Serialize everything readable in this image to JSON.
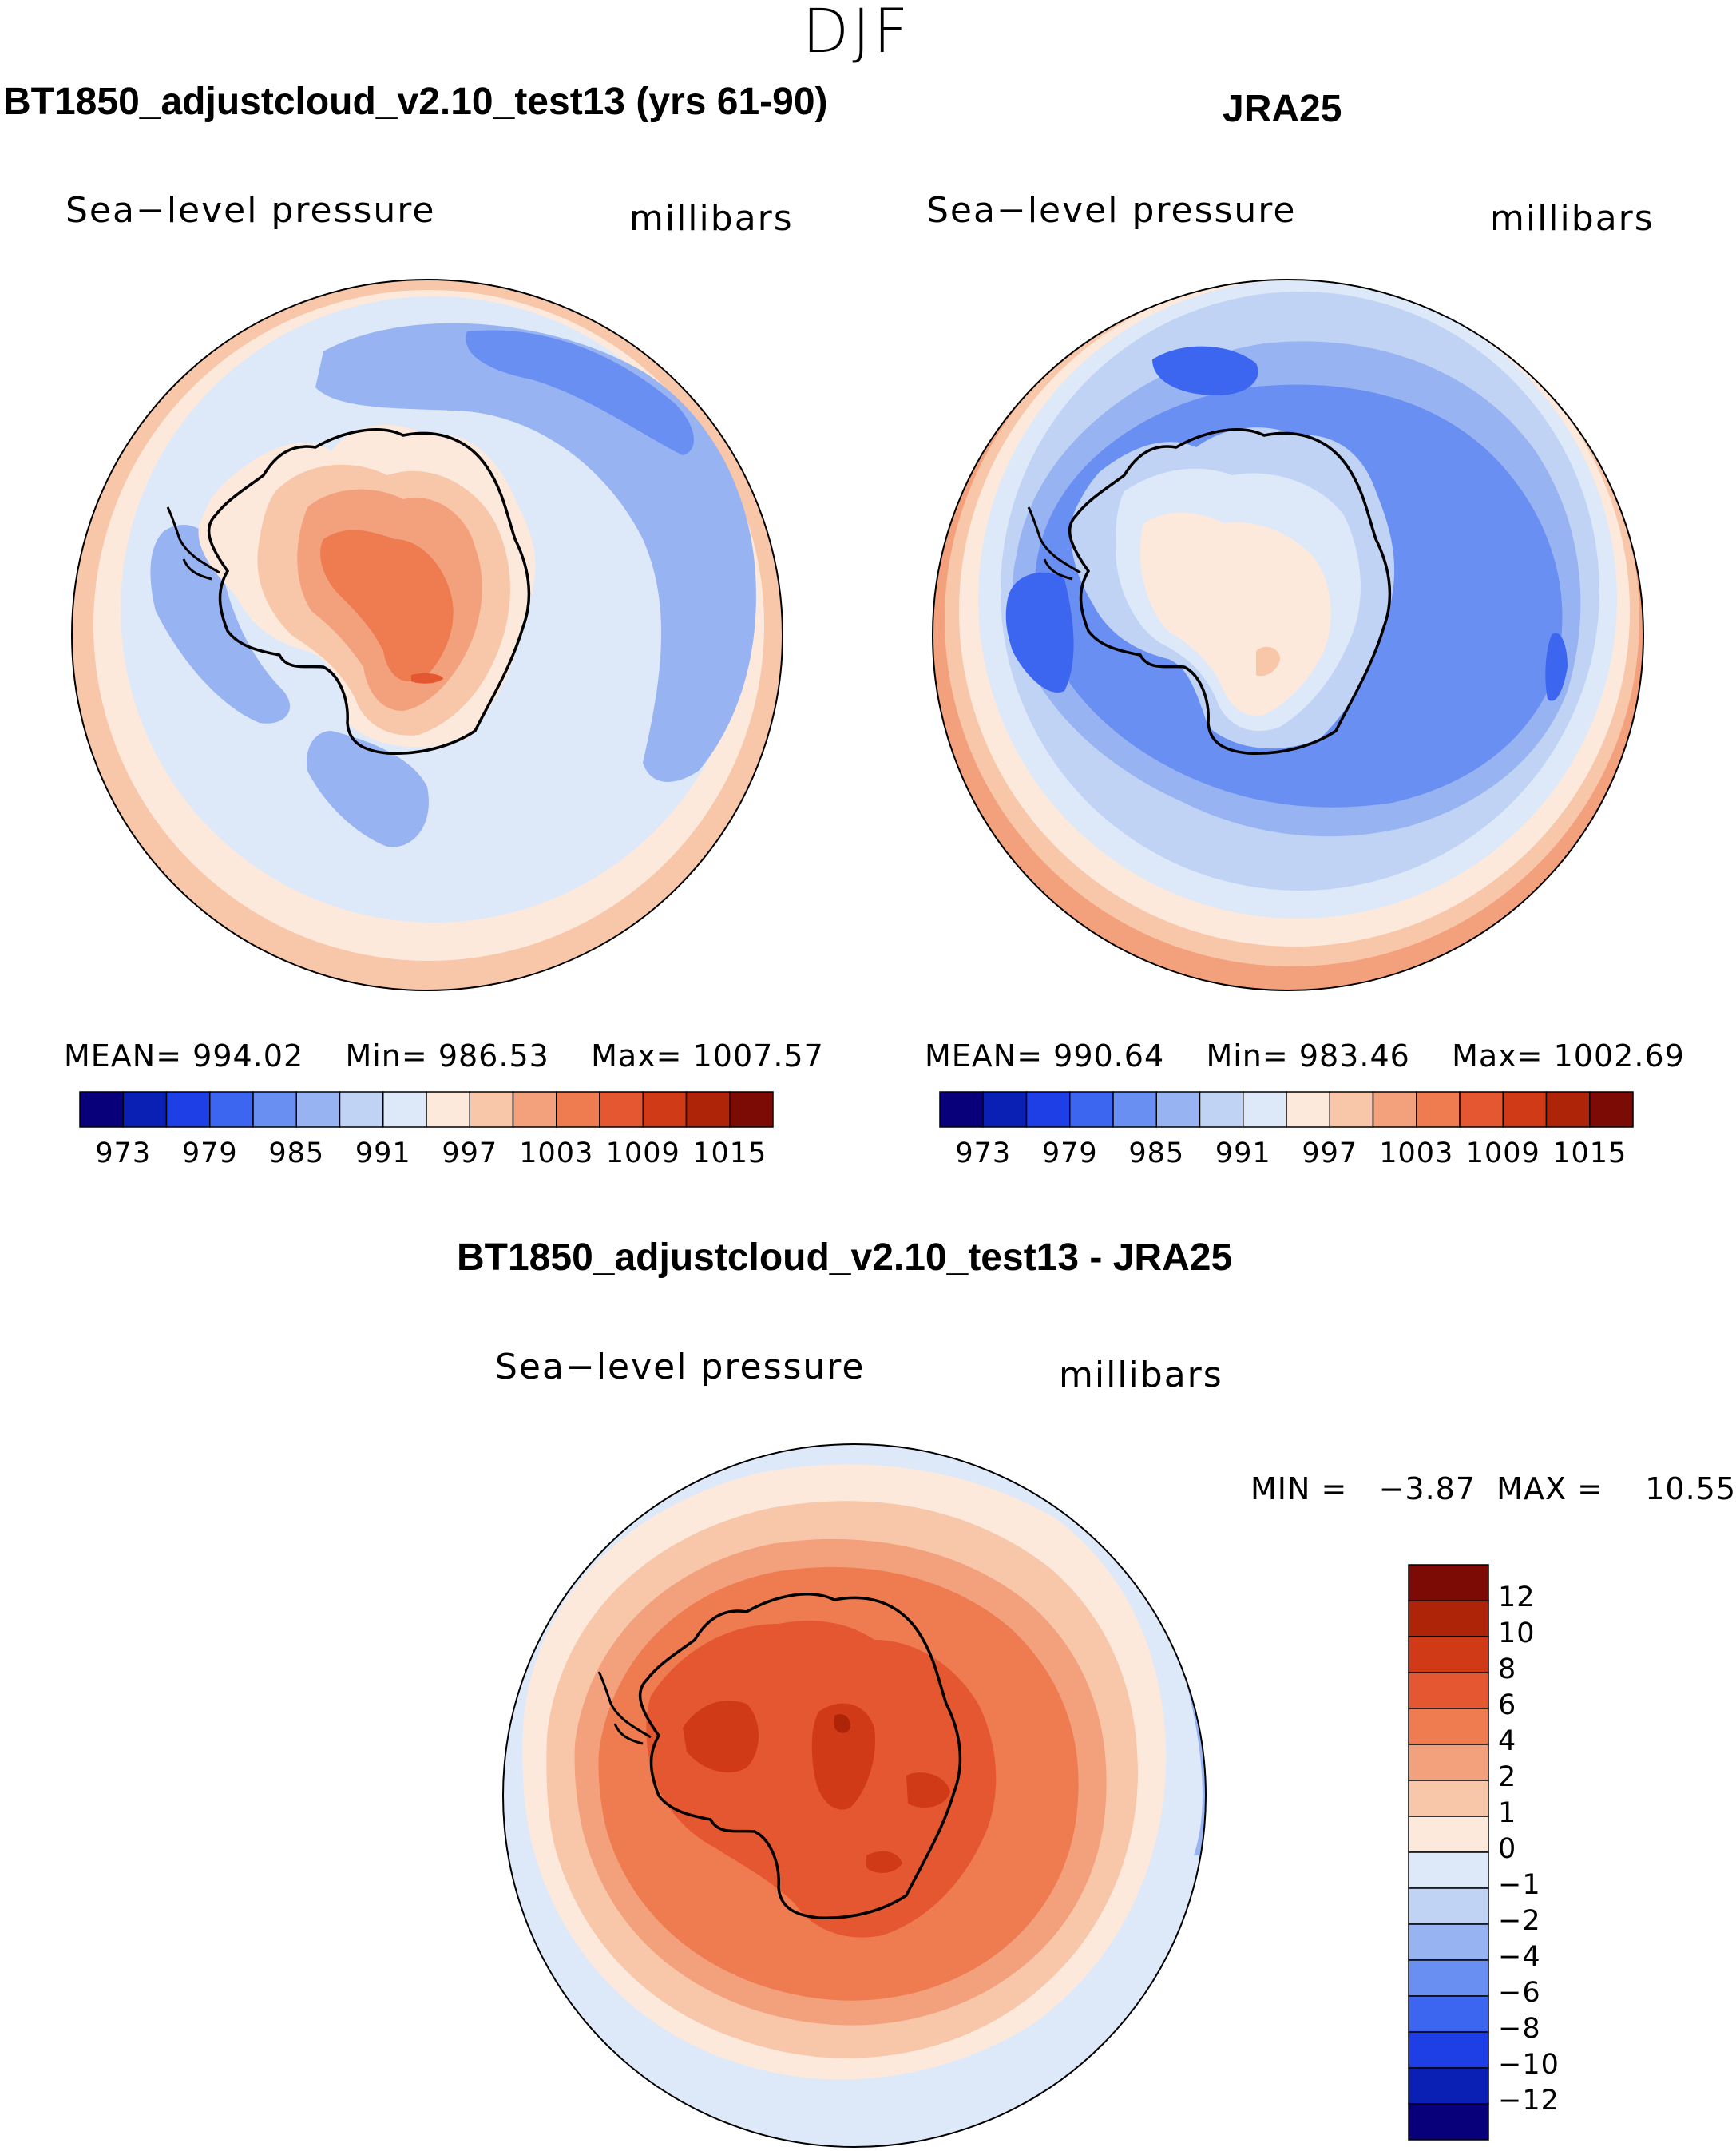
{
  "season": "DJF",
  "colors": {
    "abs_scale": [
      "#08007a",
      "#0a1fb4",
      "#1f3fe6",
      "#3d66f0",
      "#6a8ff2",
      "#98b3f2",
      "#c0d3f4",
      "#dde9f8",
      "#fce9dc",
      "#f8c6a9",
      "#f3a17c",
      "#ee7c50",
      "#e55730",
      "#d03a16",
      "#ae2409",
      "#7c0a05"
    ],
    "diff_scale": [
      "#08007a",
      "#0a1fb4",
      "#1f3fe6",
      "#3d66f0",
      "#6a8ff2",
      "#98b3f2",
      "#c0d3f4",
      "#dde9f8",
      "#fce9dc",
      "#f8c6a9",
      "#f3a17c",
      "#ee7c50",
      "#e55730",
      "#d03a16",
      "#ae2409",
      "#7c0a05"
    ]
  },
  "panels": [
    {
      "title": "BT1850_adjustcloud_v2.10_test13 (yrs 61-90)",
      "variable": "Sea−level pressure",
      "units": "millibars",
      "mean_label": "MEAN=",
      "mean": "994.02",
      "min_label": "Min=",
      "min": "986.53",
      "max_label": "Max=",
      "max": "1007.57",
      "ticks": [
        "973",
        "979",
        "985",
        "991",
        "997",
        "1003",
        "1009",
        "1015"
      ]
    },
    {
      "title": "JRA25",
      "variable": "Sea−level pressure",
      "units": "millibars",
      "mean_label": "MEAN=",
      "mean": "990.64",
      "min_label": "Min=",
      "min": "983.46",
      "max_label": "Max=",
      "max": "1002.69",
      "ticks": [
        "973",
        "979",
        "985",
        "991",
        "997",
        "1003",
        "1009",
        "1015"
      ]
    }
  ],
  "diff": {
    "title": "BT1850_adjustcloud_v2.10_test13 - JRA25",
    "variable": "Sea−level pressure",
    "units": "millibars",
    "minmax": "MIN =   −3.87  MAX =    10.55",
    "ticks": [
      "12",
      "10",
      "8",
      "6",
      "4",
      "2",
      "1",
      "0",
      "−1",
      "−2",
      "−4",
      "−6",
      "−8",
      "−10",
      "−12"
    ]
  }
}
